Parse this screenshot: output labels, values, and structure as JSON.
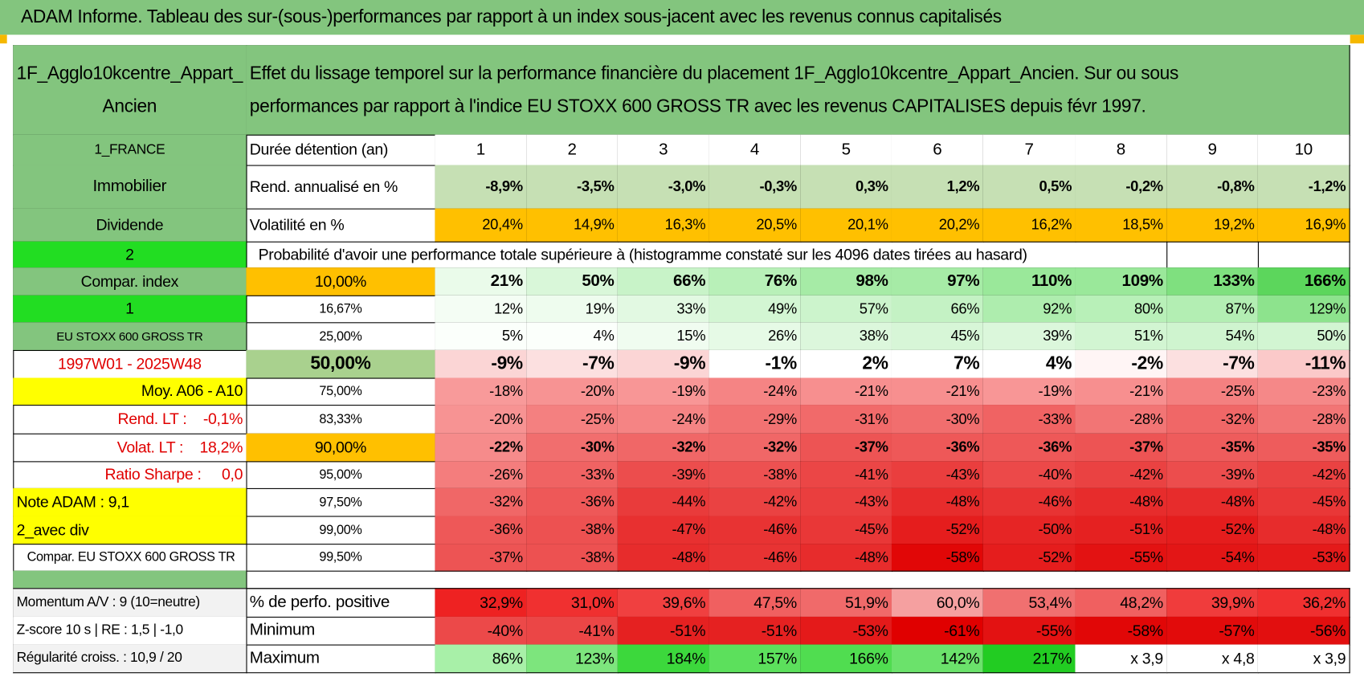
{
  "title": "ADAM Informe. Tableau des sur-(sous-)performances par rapport à un index sous-jacent avec les revenus connus capitalisés",
  "table": {
    "header": {
      "left": "1F_Agglo10kcentre_Appart_Ancien",
      "description": "Effet du lissage temporel sur la performance financière du placement 1F_Agglo10kcentre_Appart_Ancien. Sur ou sous performances par rapport à l'indice EU STOXX 600 GROSS TR avec les revenus CAPITALISES depuis févr 1997."
    },
    "rows": [
      [
        "1_FRANCE",
        "Durée détention (an)",
        "1",
        "2",
        "3",
        "4",
        "5",
        "6",
        "7",
        "8",
        "9",
        "10"
      ],
      [
        "Immobilier",
        "Rend. annualisé en %",
        "-8,9%",
        "-3,5%",
        "-3,0%",
        "-0,3%",
        "0,3%",
        "1,2%",
        "0,5%",
        "-0,2%",
        "-0,8%",
        "-1,2%"
      ],
      [
        "Dividende",
        "Volatilité en %",
        "20,4%",
        "14,9%",
        "16,3%",
        "20,5%",
        "20,1%",
        "20,2%",
        "16,2%",
        "18,5%",
        "19,2%",
        "16,9%"
      ],
      [
        "2",
        "Probabilité d'avoir une performance totale supérieure à (histogramme constaté sur les 4096 dates tirées au hasard)"
      ],
      [
        "Compar. index",
        "10,00%",
        "21%",
        "50%",
        "66%",
        "76%",
        "98%",
        "97%",
        "110%",
        "109%",
        "133%",
        "166%"
      ],
      [
        "1",
        "16,67%",
        "12%",
        "19%",
        "33%",
        "49%",
        "57%",
        "66%",
        "92%",
        "80%",
        "87%",
        "129%"
      ],
      [
        "EU STOXX 600 GROSS TR",
        "25,00%",
        "5%",
        "4%",
        "15%",
        "26%",
        "38%",
        "45%",
        "39%",
        "51%",
        "54%",
        "50%"
      ],
      [
        "1997W01 - 2025W48",
        "50,00%",
        "-9%",
        "-7%",
        "-9%",
        "-1%",
        "2%",
        "7%",
        "4%",
        "-2%",
        "-7%",
        "-11%"
      ],
      [
        "Moy. A06 - A10",
        "75,00%",
        "-18%",
        "-20%",
        "-19%",
        "-24%",
        "-21%",
        "-21%",
        "-19%",
        "-21%",
        "-25%",
        "-23%"
      ],
      [
        "Rend. LT :    -0,1%",
        "83,33%",
        "-20%",
        "-25%",
        "-24%",
        "-29%",
        "-31%",
        "-30%",
        "-33%",
        "-28%",
        "-32%",
        "-28%"
      ],
      [
        "Volat. LT :    18,2%",
        "90,00%",
        "-22%",
        "-30%",
        "-32%",
        "-32%",
        "-37%",
        "-36%",
        "-36%",
        "-37%",
        "-35%",
        "-35%"
      ],
      [
        "Ratio Sharpe :     0,0",
        "95,00%",
        "-26%",
        "-33%",
        "-39%",
        "-38%",
        "-41%",
        "-43%",
        "-40%",
        "-42%",
        "-39%",
        "-42%"
      ],
      [
        "Note ADAM : 9,1",
        "97,50%",
        "-32%",
        "-36%",
        "-44%",
        "-42%",
        "-43%",
        "-48%",
        "-46%",
        "-48%",
        "-48%",
        "-45%"
      ],
      [
        "2_avec div",
        "99,00%",
        "-36%",
        "-38%",
        "-47%",
        "-46%",
        "-45%",
        "-52%",
        "-50%",
        "-51%",
        "-52%",
        "-48%"
      ],
      [
        "Compar. EU STOXX 600 GROSS TR",
        "99,50%",
        "-37%",
        "-38%",
        "-48%",
        "-46%",
        "-48%",
        "-58%",
        "-52%",
        "-55%",
        "-54%",
        "-53%"
      ]
    ],
    "summary": [
      [
        "Momentum A/V : 9 (10=neutre)",
        "% de perfo. positive",
        "32,9%",
        "31,0%",
        "39,6%",
        "47,5%",
        "51,9%",
        "60,0%",
        "53,4%",
        "48,2%",
        "39,9%",
        "36,2%"
      ],
      [
        "Z-score 10 s | RE : 1,5 | -1,0",
        "Minimum",
        "-40%",
        "-41%",
        "-51%",
        "-51%",
        "-53%",
        "-61%",
        "-55%",
        "-58%",
        "-57%",
        "-56%"
      ],
      [
        "Régularité croiss. : 10,9 / 20",
        "Maximum",
        "86%",
        "123%",
        "184%",
        "157%",
        "166%",
        "142%",
        "217%",
        "x 3,9",
        "x 4,8",
        "x 3,9"
      ]
    ]
  }
}
